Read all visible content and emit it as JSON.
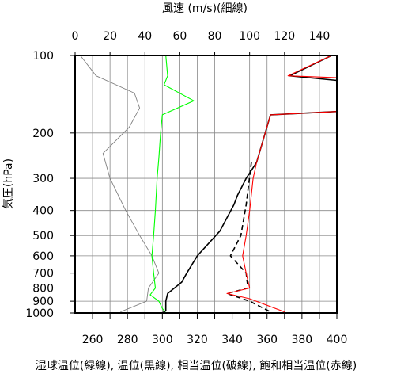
{
  "chart_data": {
    "type": "line",
    "title": "風速 (m/s)(細線)",
    "xlabel": "湿球温位(緑線), 温位(黒線), 相当温位(破線), 飽和相当温位(赤線)",
    "ylabel": "気圧(hPa)",
    "x_bottom": {
      "range": [
        250,
        400
      ],
      "ticks": [
        260,
        280,
        300,
        320,
        340,
        360,
        380,
        400
      ],
      "tick_labels": [
        "260",
        "280",
        "300",
        "320",
        "340",
        "360",
        "380",
        "400"
      ]
    },
    "x_top": {
      "range": [
        0,
        150
      ],
      "ticks": [
        0,
        20,
        40,
        60,
        80,
        100,
        120,
        140
      ],
      "tick_labels": [
        "0",
        "20",
        "40",
        "60",
        "80",
        "100",
        "120",
        "140"
      ]
    },
    "y": {
      "scale": "log",
      "inverted": true,
      "range": [
        100,
        1000
      ],
      "ticks": [
        100,
        200,
        300,
        400,
        500,
        600,
        700,
        800,
        900,
        1000
      ],
      "tick_labels": [
        "100",
        "200",
        "300",
        "400",
        "500",
        "600",
        "700",
        "800",
        "900",
        "1000"
      ]
    },
    "grid": true,
    "series": [
      {
        "color": "#808080",
        "axis": "top",
        "style": "thin",
        "points": [
          [
            3,
            100
          ],
          [
            12,
            120
          ],
          [
            34,
            140
          ],
          [
            37,
            160
          ],
          [
            31,
            190
          ],
          [
            16,
            240
          ],
          [
            20,
            300
          ],
          [
            29,
            400
          ],
          [
            37,
            500
          ],
          [
            44,
            600
          ],
          [
            48,
            700
          ],
          [
            42,
            800
          ],
          [
            41,
            900
          ],
          [
            26,
            990
          ]
        ]
      },
      {
        "color": "#00ff00",
        "axis": "bottom",
        "style": "solid",
        "points": [
          [
            302,
            100
          ],
          [
            303,
            120
          ],
          [
            301,
            130
          ],
          [
            318,
            150
          ],
          [
            300,
            170
          ],
          [
            299,
            200
          ],
          [
            298,
            250
          ],
          [
            297,
            300
          ],
          [
            296,
            400
          ],
          [
            295,
            500
          ],
          [
            294,
            600
          ],
          [
            295,
            700
          ],
          [
            296,
            800
          ],
          [
            293,
            850
          ],
          [
            298,
            900
          ],
          [
            300,
            960
          ],
          [
            302,
            1000
          ]
        ]
      },
      {
        "color": "#000000",
        "axis": "bottom",
        "style": "solid",
        "points": [
          [
            397,
            100
          ],
          [
            373,
            120
          ],
          [
            400,
            125
          ],
          [
            400,
            165
          ],
          [
            362,
            170
          ],
          [
            354,
            260
          ],
          [
            348,
            300
          ],
          [
            343,
            350
          ],
          [
            341,
            380
          ],
          [
            333,
            480
          ],
          [
            320,
            600
          ],
          [
            314,
            700
          ],
          [
            311,
            760
          ],
          [
            303,
            840
          ],
          [
            302,
            900
          ],
          [
            302,
            980
          ],
          [
            300,
            1000
          ]
        ]
      },
      {
        "color": "#000000",
        "axis": "bottom",
        "style": "dashed",
        "points": [
          [
            351,
            260
          ],
          [
            348,
            380
          ],
          [
            345,
            500
          ],
          [
            339,
            600
          ],
          [
            348,
            700
          ],
          [
            349,
            800
          ],
          [
            337,
            840
          ],
          [
            350,
            900
          ],
          [
            362,
            990
          ]
        ]
      },
      {
        "color": "#ff0000",
        "axis": "bottom",
        "style": "solid",
        "points": [
          [
            397,
            100
          ],
          [
            372,
            120
          ],
          [
            400,
            122
          ],
          [
            400,
            165
          ],
          [
            362,
            170
          ],
          [
            354,
            260
          ],
          [
            352,
            300
          ],
          [
            350,
            400
          ],
          [
            348,
            500
          ],
          [
            346,
            600
          ],
          [
            348,
            700
          ],
          [
            350,
            800
          ],
          [
            337,
            840
          ],
          [
            350,
            880
          ],
          [
            370,
            990
          ]
        ]
      }
    ]
  }
}
